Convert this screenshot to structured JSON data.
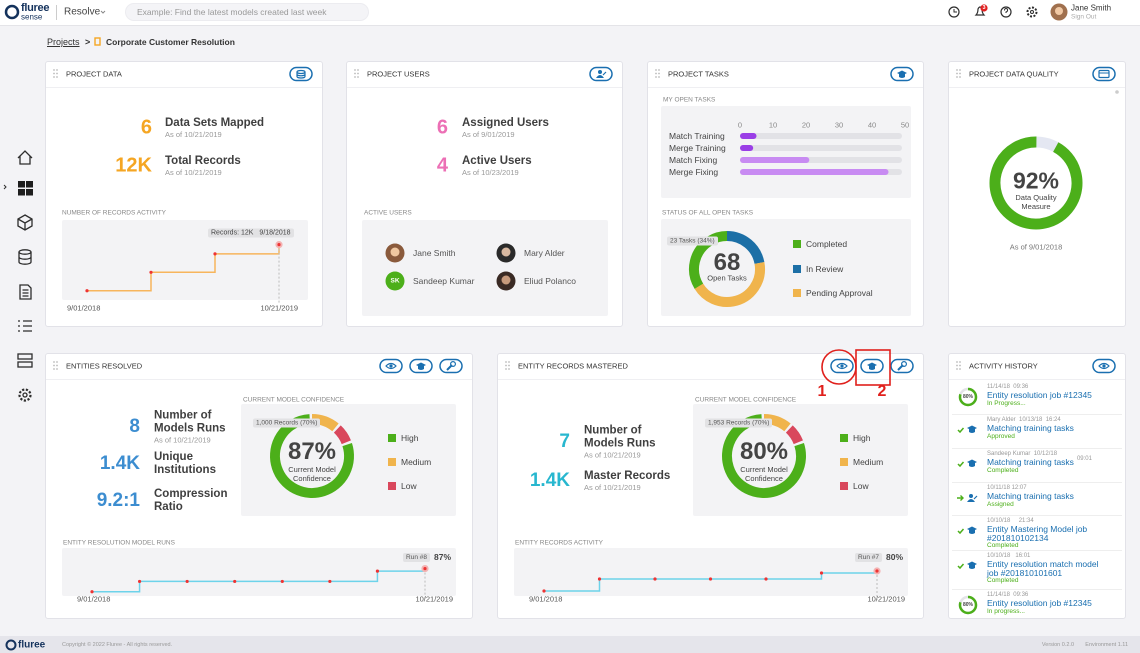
{
  "topbar": {
    "logo": "fluree",
    "logo_sub": "sense",
    "app_menu": "Resolve",
    "search_placeholder": "Example: Find the latest models created last week",
    "notification_count": "3",
    "user_name": "Jane Smith",
    "sign_out": "Sign Out"
  },
  "breadcrumb": {
    "root": "Projects",
    "separator": ">",
    "current": "Corporate Customer Resolution"
  },
  "project_data": {
    "title": "PROJECT DATA",
    "kpis": [
      {
        "value": "6",
        "label": "Data Sets Mapped",
        "date": "As of 10/21/2019"
      },
      {
        "value": "12K",
        "label": "Total Records",
        "date": "As of 10/21/2019"
      }
    ],
    "activity": {
      "type": "line",
      "title": "NUMBER OF RECORDS ACTIVITY",
      "values": [
        2,
        6,
        10,
        12
      ],
      "ylim": [
        0,
        13
      ],
      "color": "#f7b55c",
      "start_label": "9/01/2018",
      "end_label": "10/21/2019",
      "tooltip": {
        "label": "Records: 12K",
        "value": "9/18/2018"
      }
    }
  },
  "project_users": {
    "title": "PROJECT USERS",
    "kpis": [
      {
        "value": "6",
        "label": "Assigned Users",
        "date": "As of 9/01/2019"
      },
      {
        "value": "4",
        "label": "Active Users",
        "date": "As of 10/23/2019"
      }
    ],
    "active_users_title": "ACTIVE USERS",
    "active_users": [
      {
        "name": "Jane Smith"
      },
      {
        "name": "Mary Alder"
      },
      {
        "name": "Sandeep Kumar",
        "initials": "SK"
      },
      {
        "name": "Eliud Polanco"
      }
    ]
  },
  "project_tasks": {
    "title": "PROJECT TASKS",
    "my_open_tasks": {
      "type": "bar",
      "title": "MY OPEN TASKS",
      "categories": [
        "Match Training",
        "Merge Training",
        "Match Fixing",
        "Merge Fixing"
      ],
      "values": [
        5,
        4,
        21,
        45
      ],
      "colors": [
        "#9a3ee6",
        "#9a3ee6",
        "#c88bf2",
        "#c88bf2"
      ],
      "xlim": [
        0,
        50
      ],
      "xticks": [
        0,
        10,
        20,
        30,
        40,
        50
      ]
    },
    "status": {
      "type": "pie",
      "title": "STATUS OF ALL OPEN TASKS",
      "total": "68",
      "total_label": "Open Tasks",
      "callout": "23 Tasks (34%)",
      "categories": [
        "Completed",
        "In Review",
        "Pending Approval"
      ],
      "values": [
        23,
        15,
        30
      ],
      "colors": [
        "#4caf1a",
        "#1c6fa6",
        "#f0b44c"
      ]
    }
  },
  "data_quality": {
    "title": "PROJECT DATA QUALITY",
    "type": "pie",
    "value": 92,
    "value_label": "92%",
    "label": "Data Quality Measure",
    "date": "As of 9/01/2018",
    "color": "#4caf1a"
  },
  "entities_resolved": {
    "title": "ENTITIES RESOLVED",
    "kpis": [
      {
        "value": "8",
        "label": "Number of Models Runs",
        "date": "As of 10/21/2019"
      },
      {
        "value": "1.4K",
        "label": "Unique Institutions"
      },
      {
        "value": "9.2:1",
        "label": "Compression Ratio"
      }
    ],
    "confidence": {
      "type": "pie",
      "title": "CURRENT MODEL CONFIDENCE",
      "value_label": "87%",
      "label": "Current Model Confidence",
      "callout": "1,000 Records (70%)",
      "categories": [
        "High",
        "Medium",
        "Low"
      ],
      "values": [
        80,
        12,
        8
      ],
      "colors": [
        "#4caf1a",
        "#f0b44c",
        "#d9475c"
      ]
    },
    "runs": {
      "type": "line",
      "title": "ENTITY RESOLUTION MODEL RUNS",
      "values": [
        60,
        72,
        72,
        72,
        72,
        72,
        84,
        87
      ],
      "ylim": [
        55,
        90
      ],
      "color": "#6dd3ea",
      "start_label": "9/01/2018",
      "end_label": "10/21/2019",
      "tooltip": {
        "label": "Run #8",
        "value": "87%"
      }
    }
  },
  "records_mastered": {
    "title": "ENTITY RECORDS MASTERED",
    "kpis": [
      {
        "value": "7",
        "label": "Number of Models Runs",
        "date": "As of 10/21/2019"
      },
      {
        "value": "1.4K",
        "label": "Master Records",
        "date": "As of 10/21/2019"
      }
    ],
    "confidence": {
      "type": "pie",
      "title": "CURRENT MODEL CONFIDENCE",
      "value_label": "80%",
      "label": "Current Model Confidence",
      "callout": "1,953 Records (70%)",
      "categories": [
        "High",
        "Medium",
        "Low"
      ],
      "values": [
        80,
        12,
        8
      ],
      "colors": [
        "#4caf1a",
        "#f0b44c",
        "#d9475c"
      ]
    },
    "activity": {
      "type": "line",
      "title": "ENTITY RECORDS ACTIVITY",
      "values": [
        60,
        72,
        72,
        72,
        72,
        78,
        80
      ],
      "ylim": [
        55,
        85
      ],
      "color": "#6dd3ea",
      "start_label": "9/01/2018",
      "end_label": "10/21/2019",
      "tooltip": {
        "label": "Run #7",
        "value": "80%"
      }
    },
    "annotations": [
      "1",
      "2"
    ]
  },
  "activity_history": {
    "title": "ACTIVITY HISTORY",
    "items": [
      {
        "icon": "progress",
        "progress": 80,
        "progress_label": "80%",
        "meta": "11/14/18  09:36",
        "title": "Entity resolution job #12345",
        "status": "In Progress..."
      },
      {
        "icon": "check",
        "meta": "Mary Alder  10/13/18  16:24",
        "title": "Matching training tasks",
        "status": "Approved"
      },
      {
        "icon": "check",
        "meta": "Sandeep Kumar  10/12/18",
        "title": "Matching training tasks",
        "time": "09:01",
        "status": "Completed"
      },
      {
        "icon": "assign",
        "meta": "10/11/18 12:07",
        "title": "Matching training tasks",
        "status": "Assigned"
      },
      {
        "icon": "check",
        "meta": "10/10/18     21:34",
        "title": "Entity Mastering Model job #201810102134",
        "status": "Completed"
      },
      {
        "icon": "check",
        "meta": "10/10/18   16:01",
        "title": "Entity resolution match model job #201810101601",
        "status": "Completed"
      },
      {
        "icon": "progress",
        "progress": 80,
        "progress_label": "80%",
        "meta": "11/14/18  09:36",
        "title": "Entity resolution job #12345",
        "status": "In progress..."
      }
    ]
  },
  "footer": {
    "logo": "fluree",
    "copyright": "Copyright © 2022 Fluree - All rights reserved.",
    "version": "Version 0.2.0",
    "environment": "Environment 1.11"
  }
}
